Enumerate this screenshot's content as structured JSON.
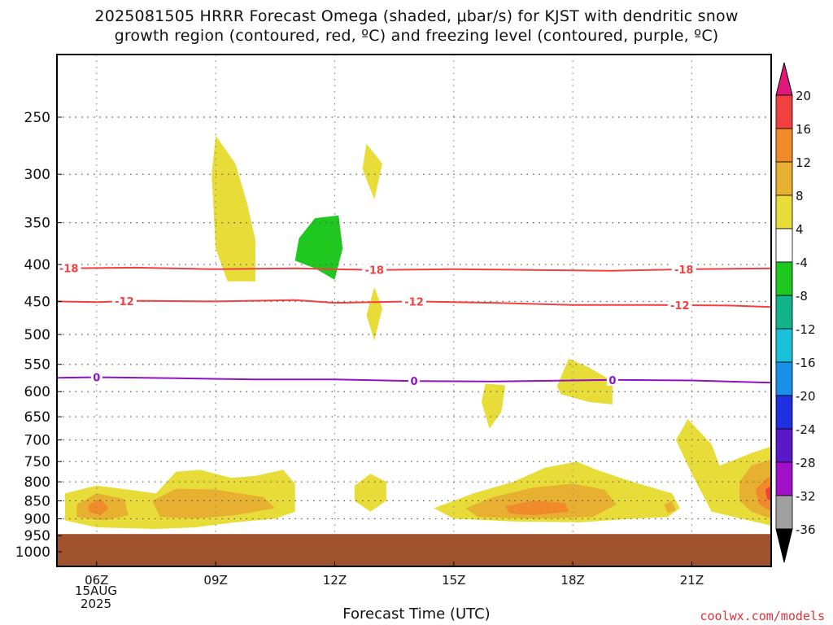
{
  "title": {
    "line1": "2025081505 HRRR Forecast Omega (shaded, μbar/s) for KJST with dendritic snow",
    "line2": "growth region (contoured, red, ºC) and freezing level (contoured, purple, ºC)"
  },
  "xlabel": "Forecast Time (UTC)",
  "date_label": {
    "day": "15AUG",
    "year": "2025"
  },
  "credit": "coolwx.com/models",
  "chart_data": {
    "type": "heatmap",
    "title": "2025081505 HRRR Forecast Omega (shaded, μbar/s) for KJST with dendritic snow growth region (contoured, red, ºC) and freezing level (contoured, purple, ºC)",
    "xlabel": "Forecast Time (UTC)",
    "ylabel": "",
    "x_ticks": [
      {
        "hour": 6,
        "label": "06Z"
      },
      {
        "hour": 9,
        "label": "09Z"
      },
      {
        "hour": 12,
        "label": "12Z"
      },
      {
        "hour": 15,
        "label": "15Z"
      },
      {
        "hour": 18,
        "label": "18Z"
      },
      {
        "hour": 21,
        "label": "21Z"
      }
    ],
    "xlim": [
      5,
      23
    ],
    "y_ticks": [
      250,
      300,
      350,
      400,
      450,
      500,
      550,
      600,
      650,
      700,
      750,
      800,
      850,
      900,
      950,
      1000
    ],
    "ylim_hpa": [
      1000,
      200
    ],
    "y_scale": "log-pressure",
    "grid": true,
    "colorbar": {
      "levels": [
        {
          "label": "20",
          "color": "#e0187a"
        },
        {
          "label": "16",
          "color": "#f04040"
        },
        {
          "label": "12",
          "color": "#f08a2a"
        },
        {
          "label": "8",
          "color": "#e8b030"
        },
        {
          "label": "4",
          "color": "#e8dc38"
        },
        {
          "label": "-4",
          "color": "#ffffff"
        },
        {
          "label": "-8",
          "color": "#1ec81e"
        },
        {
          "label": "-12",
          "color": "#12b48c"
        },
        {
          "label": "-16",
          "color": "#18c0d8"
        },
        {
          "label": "-20",
          "color": "#1890e8"
        },
        {
          "label": "-24",
          "color": "#2030e0"
        },
        {
          "label": "-28",
          "color": "#5a18c8"
        },
        {
          "label": "-32",
          "color": "#a010c8"
        },
        {
          "label": "-36",
          "color": "#a0a0a0"
        }
      ],
      "low_extend_color": "#000000",
      "high_extend_color": "#e0187a"
    },
    "contours": [
      {
        "label": "-18",
        "color": "#f04040",
        "points": [
          [
            5,
            405
          ],
          [
            7,
            404
          ],
          [
            9,
            406
          ],
          [
            11,
            405
          ],
          [
            13,
            407
          ],
          [
            15,
            406
          ],
          [
            17,
            407
          ],
          [
            19,
            408
          ],
          [
            21,
            406
          ],
          [
            23,
            405
          ]
        ],
        "label_hours": [
          5.3,
          13.0,
          20.8
        ]
      },
      {
        "label": "-12",
        "color": "#f04040",
        "points": [
          [
            5,
            450
          ],
          [
            6,
            451
          ],
          [
            7,
            449
          ],
          [
            9,
            450
          ],
          [
            11,
            448
          ],
          [
            12,
            452
          ],
          [
            14,
            450
          ],
          [
            16,
            452
          ],
          [
            18,
            455
          ],
          [
            20,
            455
          ],
          [
            22,
            456
          ],
          [
            23,
            458
          ]
        ],
        "label_hours": [
          6.7,
          14.0,
          20.7
        ]
      },
      {
        "label": "0",
        "color": "#9010c8",
        "points": [
          [
            5,
            574
          ],
          [
            6,
            573
          ],
          [
            8,
            575
          ],
          [
            10,
            577
          ],
          [
            12,
            577
          ],
          [
            14,
            580
          ],
          [
            16,
            581
          ],
          [
            18,
            579
          ],
          [
            19,
            578
          ],
          [
            21,
            579
          ],
          [
            23,
            583
          ]
        ],
        "label_hours": [
          6.0,
          14.0,
          19.0
        ]
      }
    ],
    "shaded_regions": [
      {
        "name": "omega-4-8",
        "color": "#e8dc38",
        "points": [
          [
            9.0,
            265
          ],
          [
            9.5,
            290
          ],
          [
            9.8,
            330
          ],
          [
            10.0,
            370
          ],
          [
            10.0,
            422
          ],
          [
            9.3,
            422
          ],
          [
            9.0,
            380
          ],
          [
            8.9,
            300
          ]
        ]
      },
      {
        "name": "omega-4-8",
        "color": "#e8dc38",
        "points": [
          [
            12.8,
            272
          ],
          [
            13.2,
            290
          ],
          [
            13.0,
            325
          ],
          [
            12.7,
            295
          ]
        ]
      },
      {
        "name": "omega-4-8",
        "color": "#e8dc38",
        "points": [
          [
            13.0,
            430
          ],
          [
            13.2,
            460
          ],
          [
            13.0,
            510
          ],
          [
            12.8,
            470
          ]
        ]
      },
      {
        "name": "omega-neg-4-8",
        "color": "#1ec81e",
        "points": [
          [
            11.1,
            368
          ],
          [
            11.5,
            345
          ],
          [
            12.1,
            342
          ],
          [
            12.2,
            380
          ],
          [
            12.0,
            420
          ],
          [
            11.5,
            405
          ],
          [
            11.0,
            395
          ]
        ]
      },
      {
        "name": "omega-4-8",
        "color": "#e8dc38",
        "points": [
          [
            15.8,
            585
          ],
          [
            16.3,
            588
          ],
          [
            16.2,
            640
          ],
          [
            15.9,
            675
          ],
          [
            15.7,
            620
          ]
        ]
      },
      {
        "name": "omega-4-8",
        "color": "#e8dc38",
        "points": [
          [
            17.6,
            590
          ],
          [
            17.9,
            540
          ],
          [
            18.4,
            555
          ],
          [
            19.0,
            580
          ],
          [
            19.0,
            625
          ],
          [
            18.4,
            620
          ],
          [
            17.7,
            605
          ]
        ]
      },
      {
        "name": "omega-4-8",
        "color": "#e8dc38",
        "points": [
          [
            12.5,
            810
          ],
          [
            12.9,
            780
          ],
          [
            13.3,
            800
          ],
          [
            13.3,
            850
          ],
          [
            12.9,
            880
          ],
          [
            12.5,
            850
          ]
        ]
      },
      {
        "name": "omega-4-8",
        "color": "#e8dc38",
        "points": [
          [
            20.6,
            700
          ],
          [
            20.9,
            655
          ],
          [
            21.5,
            710
          ],
          [
            21.7,
            760
          ],
          [
            22.5,
            730
          ],
          [
            23,
            715
          ],
          [
            23,
            920
          ],
          [
            21.5,
            880
          ],
          [
            21.0,
            780
          ]
        ]
      },
      {
        "name": "omega-4-8",
        "color": "#e8dc38",
        "points": [
          [
            5.2,
            830
          ],
          [
            6.0,
            810
          ],
          [
            6.8,
            820
          ],
          [
            7.5,
            830
          ],
          [
            8.0,
            775
          ],
          [
            8.6,
            770
          ],
          [
            9.4,
            790
          ],
          [
            10.0,
            785
          ],
          [
            10.7,
            770
          ],
          [
            11.0,
            805
          ],
          [
            11.0,
            880
          ],
          [
            10.5,
            900
          ],
          [
            9.5,
            910
          ],
          [
            8.5,
            925
          ],
          [
            7.5,
            930
          ],
          [
            6.0,
            925
          ],
          [
            5.2,
            905
          ]
        ]
      },
      {
        "name": "omega-4-8",
        "color": "#e8dc38",
        "points": [
          [
            14.5,
            870
          ],
          [
            15.5,
            830
          ],
          [
            16.5,
            800
          ],
          [
            17.3,
            765
          ],
          [
            18.1,
            750
          ],
          [
            18.6,
            770
          ],
          [
            19.5,
            800
          ],
          [
            20.5,
            830
          ],
          [
            20.7,
            870
          ],
          [
            20.4,
            895
          ],
          [
            19.5,
            900
          ],
          [
            18.2,
            910
          ],
          [
            16.5,
            908
          ],
          [
            15.0,
            900
          ]
        ]
      },
      {
        "name": "omega-8-12",
        "color": "#e8b030",
        "points": [
          [
            5.5,
            860
          ],
          [
            6.0,
            830
          ],
          [
            6.7,
            845
          ],
          [
            6.8,
            890
          ],
          [
            6.2,
            905
          ],
          [
            5.5,
            895
          ]
        ]
      },
      {
        "name": "omega-8-12",
        "color": "#e8b030",
        "points": [
          [
            7.4,
            850
          ],
          [
            8.0,
            818
          ],
          [
            9.0,
            820
          ],
          [
            10.2,
            840
          ],
          [
            10.5,
            870
          ],
          [
            9.5,
            890
          ],
          [
            8.5,
            900
          ],
          [
            7.6,
            895
          ]
        ]
      },
      {
        "name": "omega-8-12",
        "color": "#e8b030",
        "points": [
          [
            15.3,
            870
          ],
          [
            16.0,
            840
          ],
          [
            17.0,
            815
          ],
          [
            18.0,
            805
          ],
          [
            18.8,
            820
          ],
          [
            19.1,
            860
          ],
          [
            18.5,
            895
          ],
          [
            17.0,
            900
          ],
          [
            15.6,
            895
          ]
        ]
      },
      {
        "name": "omega-8-12",
        "color": "#e8b030",
        "points": [
          [
            20.3,
            860
          ],
          [
            20.5,
            850
          ],
          [
            20.6,
            875
          ],
          [
            20.4,
            885
          ]
        ]
      },
      {
        "name": "omega-8-12",
        "color": "#e8b030",
        "points": [
          [
            22.2,
            800
          ],
          [
            22.5,
            760
          ],
          [
            23,
            745
          ],
          [
            23,
            900
          ],
          [
            22.5,
            880
          ],
          [
            22.2,
            850
          ]
        ]
      },
      {
        "name": "omega-12-16",
        "color": "#f08a2a",
        "points": [
          [
            5.8,
            860
          ],
          [
            6.1,
            845
          ],
          [
            6.3,
            870
          ],
          [
            6.1,
            890
          ],
          [
            5.8,
            880
          ]
        ]
      },
      {
        "name": "omega-12-16",
        "color": "#f08a2a",
        "points": [
          [
            16.3,
            865
          ],
          [
            17.0,
            850
          ],
          [
            17.8,
            855
          ],
          [
            17.9,
            880
          ],
          [
            17.0,
            890
          ],
          [
            16.4,
            885
          ]
        ]
      },
      {
        "name": "omega-12-16",
        "color": "#f08a2a",
        "points": [
          [
            22.6,
            820
          ],
          [
            22.9,
            790
          ],
          [
            23,
            785
          ],
          [
            23,
            880
          ],
          [
            22.7,
            860
          ]
        ]
      },
      {
        "name": "omega-16-20",
        "color": "#f04040",
        "points": [
          [
            22.85,
            820
          ],
          [
            23,
            810
          ],
          [
            23,
            850
          ],
          [
            22.9,
            845
          ]
        ]
      }
    ],
    "ground": {
      "color": "#a0522d",
      "top_hpa": 945
    }
  }
}
